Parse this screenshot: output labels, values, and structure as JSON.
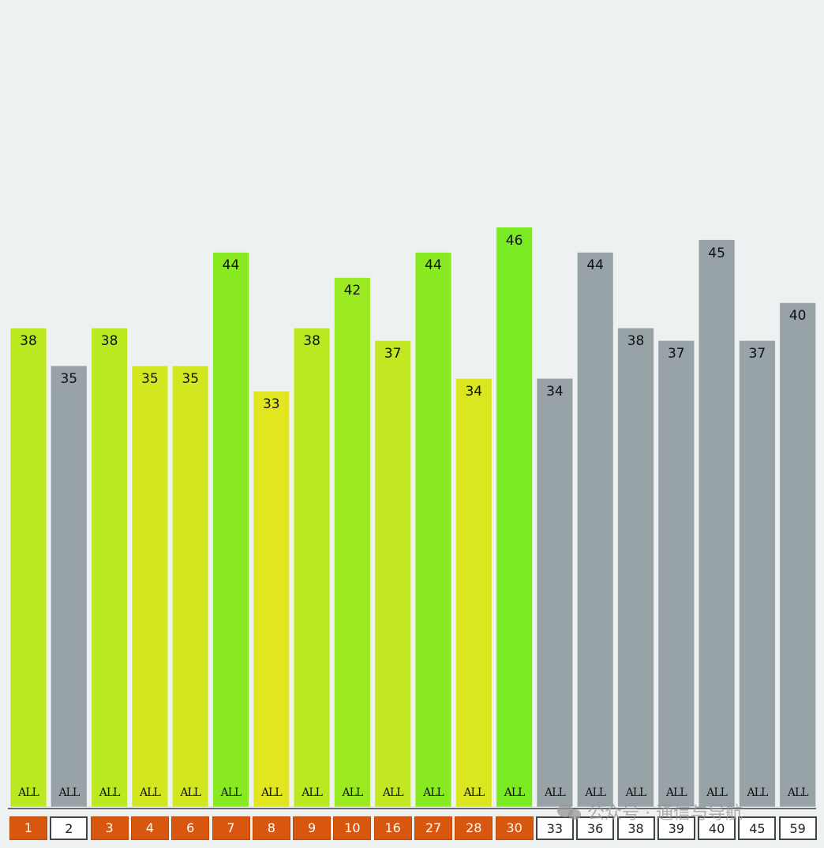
{
  "chart_data": {
    "type": "bar",
    "categories": [
      "1",
      "2",
      "3",
      "4",
      "6",
      "7",
      "8",
      "9",
      "10",
      "16",
      "27",
      "28",
      "30",
      "33",
      "36",
      "38",
      "39",
      "40",
      "45",
      "59"
    ],
    "values": [
      38,
      35,
      38,
      35,
      35,
      44,
      33,
      38,
      42,
      37,
      44,
      34,
      46,
      34,
      44,
      38,
      37,
      45,
      37,
      40
    ],
    "bar_labels": [
      "ALL",
      "ALL",
      "ALL",
      "ALL",
      "ALL",
      "ALL",
      "ALL",
      "ALL",
      "ALL",
      "ALL",
      "ALL",
      "ALL",
      "ALL",
      "ALL",
      "ALL",
      "ALL",
      "ALL",
      "ALL",
      "ALL",
      "ALL"
    ],
    "active": [
      true,
      false,
      true,
      true,
      true,
      true,
      true,
      true,
      true,
      true,
      true,
      true,
      true,
      false,
      false,
      false,
      false,
      false,
      false,
      false
    ],
    "ylim": [
      0,
      60
    ],
    "grid": false,
    "xlabel": "",
    "ylabel": "",
    "title": ""
  },
  "colors": {
    "background": "#edf1f2",
    "inactive_bar": "#97a3a6",
    "active_low": "#e2e620",
    "active_high": "#7aeb22",
    "active_channel": "#d9560e",
    "inactive_channel": "#ffffff"
  },
  "watermark": {
    "icon": "wechat-icon",
    "text": "公众号 · 通信与导航"
  }
}
